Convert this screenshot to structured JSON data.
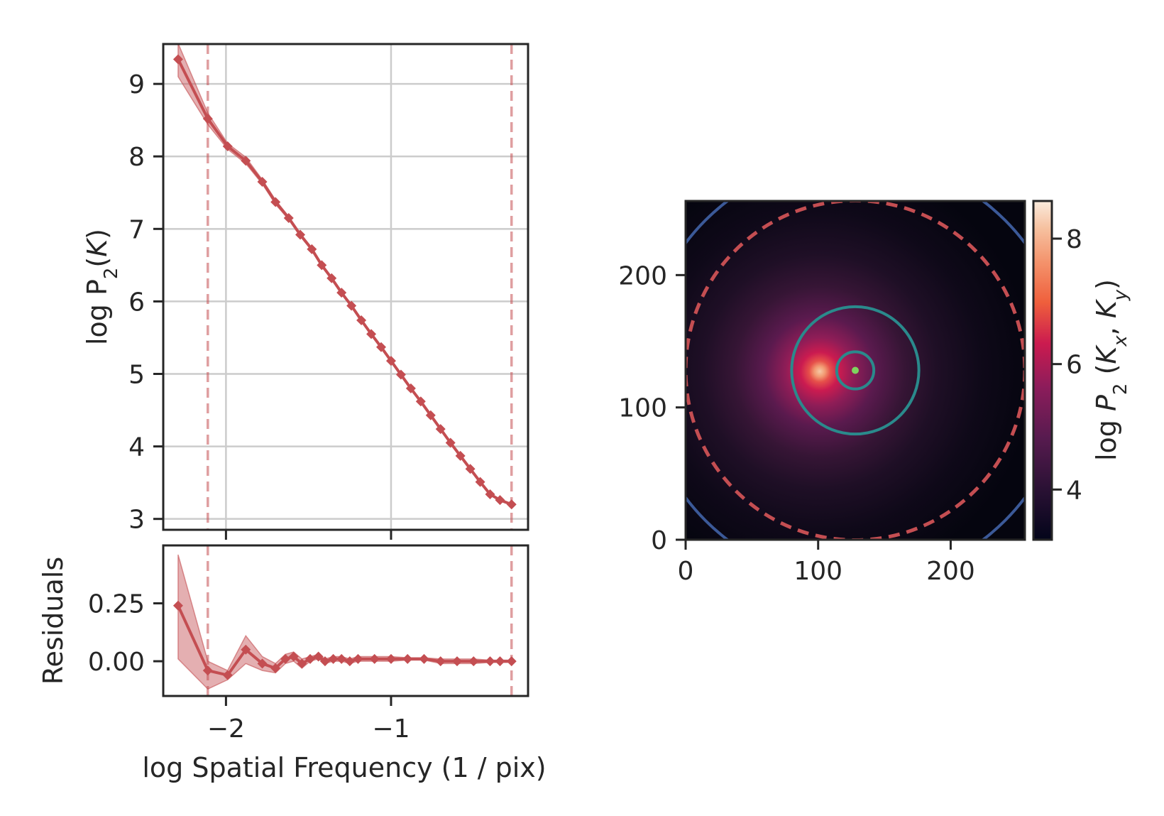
{
  "colors": {
    "series": "#c44e52",
    "inner_circle": "#2a8a8c",
    "outer_circle": "#3b5998",
    "center_dot": "#7fd35f",
    "grid": "#cccccc",
    "frame": "#262626"
  },
  "chart_data": [
    {
      "type": "line",
      "panel": "spectrum",
      "xlabel": "",
      "ylabel": "log P$_2$($K$)",
      "ylabel_parts": {
        "main": "log P",
        "sub": "2",
        "paren_open": "(",
        "italic": "K",
        "paren_close": ")"
      },
      "xlim": [
        -2.38,
        -0.17
      ],
      "ylim": [
        2.85,
        9.55
      ],
      "xticks": [
        -2,
        -1
      ],
      "yticks": [
        3,
        4,
        5,
        6,
        7,
        8,
        9
      ],
      "ytick_labels": [
        "3",
        "4",
        "5",
        "6",
        "7",
        "8",
        "9"
      ],
      "grid": true,
      "vlines": [
        -2.11,
        -0.27
      ],
      "series": [
        {
          "x": [
            -2.29,
            -2.11,
            -1.99,
            -1.88,
            -1.78,
            -1.7,
            -1.62,
            -1.55,
            -1.48,
            -1.42,
            -1.36,
            -1.3,
            -1.24,
            -1.18,
            -1.12,
            -1.06,
            -1.0,
            -0.94,
            -0.88,
            -0.82,
            -0.76,
            -0.7,
            -0.64,
            -0.58,
            -0.52,
            -0.46,
            -0.4,
            -0.34,
            -0.27
          ],
          "y": [
            9.34,
            8.52,
            8.14,
            7.94,
            7.65,
            7.37,
            7.15,
            6.92,
            6.72,
            6.5,
            6.32,
            6.12,
            5.94,
            5.74,
            5.55,
            5.37,
            5.18,
            4.99,
            4.8,
            4.62,
            4.43,
            4.24,
            4.05,
            3.87,
            3.69,
            3.51,
            3.34,
            3.26,
            3.2
          ],
          "y_upper": [
            9.56,
            8.6,
            8.18,
            7.99,
            7.68,
            7.4,
            7.17,
            6.94,
            6.74,
            6.52,
            6.33,
            6.13,
            5.95,
            5.75,
            5.56,
            5.38,
            5.19,
            5.0,
            4.81,
            4.63,
            4.44,
            4.25,
            4.06,
            3.88,
            3.7,
            3.52,
            3.35,
            3.27,
            3.21
          ],
          "y_lower": [
            9.1,
            8.44,
            8.1,
            7.9,
            7.62,
            7.34,
            7.13,
            6.9,
            6.7,
            6.48,
            6.31,
            6.11,
            5.93,
            5.73,
            5.54,
            5.36,
            5.17,
            4.98,
            4.79,
            4.61,
            4.42,
            4.23,
            4.04,
            3.86,
            3.68,
            3.5,
            3.33,
            3.25,
            3.19
          ]
        }
      ]
    },
    {
      "type": "scatter",
      "panel": "residuals",
      "xlabel": "log Spatial Frequency (1 / pix)",
      "ylabel": "Residuals",
      "xlim": [
        -2.38,
        -0.17
      ],
      "ylim": [
        -0.15,
        0.5
      ],
      "xticks": [
        -2,
        -1
      ],
      "xtick_labels": [
        "−2",
        "−1"
      ],
      "yticks": [
        0.0,
        0.25
      ],
      "ytick_labels": [
        "0.00",
        "0.25"
      ],
      "grid": false,
      "vlines": [
        -2.11,
        -0.27
      ],
      "series": [
        {
          "x": [
            -2.29,
            -2.11,
            -1.99,
            -1.88,
            -1.78,
            -1.7,
            -1.64,
            -1.59,
            -1.54,
            -1.49,
            -1.44,
            -1.4,
            -1.35,
            -1.3,
            -1.25,
            -1.2,
            -1.1,
            -1.0,
            -0.9,
            -0.8,
            -0.7,
            -0.6,
            -0.5,
            -0.4,
            -0.34,
            -0.27
          ],
          "y": [
            0.24,
            -0.04,
            -0.06,
            0.05,
            -0.01,
            -0.03,
            0.01,
            0.02,
            -0.01,
            0.01,
            0.02,
            0.0,
            0.01,
            0.01,
            0.0,
            0.01,
            0.01,
            0.01,
            0.01,
            0.01,
            0.0,
            0.0,
            0.0,
            0.0,
            0.0,
            0.0
          ],
          "y_upper": [
            0.46,
            0.0,
            -0.04,
            0.11,
            0.02,
            -0.01,
            0.03,
            0.04,
            0.01,
            0.02,
            0.03,
            0.01,
            0.02,
            0.02,
            0.01,
            0.02,
            0.02,
            0.02,
            0.015,
            0.015,
            0.01,
            0.01,
            0.01,
            0.005,
            0.005,
            0.005
          ],
          "y_lower": [
            0.01,
            -0.12,
            -0.08,
            -0.01,
            -0.04,
            -0.05,
            -0.01,
            0.0,
            -0.03,
            0.0,
            0.01,
            -0.01,
            0.0,
            0.0,
            -0.01,
            0.0,
            0.0,
            0.0,
            0.005,
            0.005,
            -0.01,
            -0.01,
            -0.01,
            -0.005,
            -0.005,
            -0.005
          ]
        }
      ]
    },
    {
      "type": "heatmap",
      "panel": "2d-power-spectrum",
      "xlim": [
        0,
        256
      ],
      "ylim": [
        0,
        256
      ],
      "xticks": [
        0,
        100,
        200
      ],
      "yticks": [
        0,
        100,
        200
      ],
      "tick_labels": [
        "0",
        "100",
        "200"
      ],
      "center": [
        128,
        128
      ],
      "circles": [
        {
          "radius": 2,
          "style": "dot",
          "color": "#7fd35f"
        },
        {
          "radius": 14,
          "style": "solid",
          "color": "#2a8a8c"
        },
        {
          "radius": 48,
          "style": "solid",
          "color": "#2a8a8c"
        },
        {
          "radius": 128,
          "style": "dashed",
          "color": "#c44e52"
        },
        {
          "radius": 160,
          "style": "solid",
          "color": "#3b5998"
        }
      ],
      "colorbar": {
        "label": "log $P_2$ ($K_x$,  $K_y$)",
        "label_parts": {
          "main": "log ",
          "p": "P",
          "p_sub": "2",
          "open": " (",
          "kx": "K",
          "kx_sub": "x",
          "comma": ",  ",
          "ky": "K",
          "ky_sub": "y",
          "close": ")"
        },
        "ticks": [
          4,
          6,
          8
        ],
        "tick_labels": [
          "4",
          "6",
          "8"
        ],
        "range": [
          3.2,
          8.6
        ],
        "colormap": "rocket"
      }
    }
  ]
}
